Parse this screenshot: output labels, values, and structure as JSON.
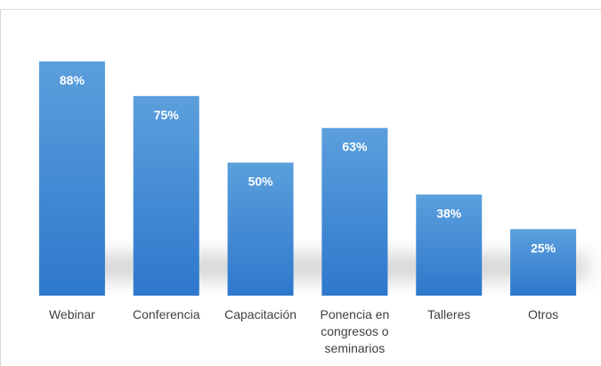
{
  "chart_data": {
    "type": "bar",
    "categories": [
      "Webinar",
      "Conferencia",
      "Capacitación",
      "Ponencia en congresos o seminarios",
      "Talleres",
      "Otros"
    ],
    "values": [
      88,
      75,
      50,
      63,
      38,
      25
    ],
    "value_labels": [
      "88%",
      "75%",
      "50%",
      "63%",
      "38%",
      "25%"
    ],
    "color": "#4a8fd6"
  }
}
